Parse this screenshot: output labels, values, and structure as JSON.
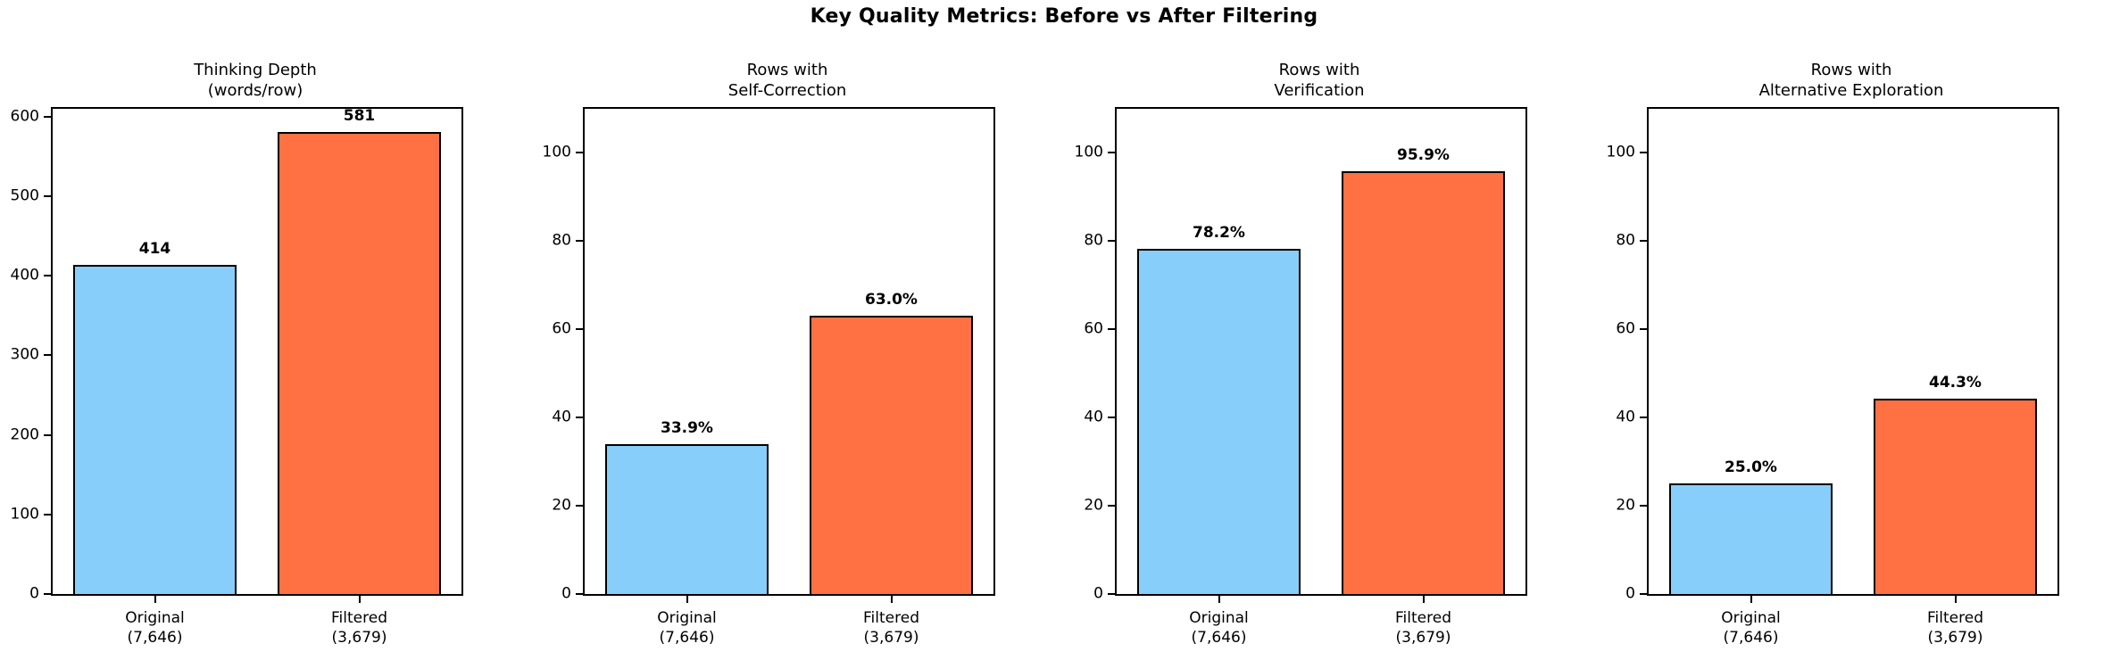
{
  "figure": {
    "title": "Key Quality Metrics: Before vs After Filtering"
  },
  "colors": {
    "original_bar": "#87CEFA",
    "filtered_bar": "#FF7043",
    "bar_edge": "#000000",
    "axis": "#000000",
    "background": "#FFFFFF"
  },
  "chart_data": [
    {
      "type": "bar",
      "title_lines": [
        "Thinking Depth",
        "(words/row)"
      ],
      "categories": [
        "Original (7,646)",
        "Filtered (3,679)"
      ],
      "category_lines": [
        [
          "Original",
          "(7,646)"
        ],
        [
          "Filtered",
          "(3,679)"
        ]
      ],
      "values": [
        414,
        581
      ],
      "bar_labels": [
        "414",
        "581"
      ],
      "yticks": [
        0,
        100,
        200,
        300,
        400,
        500,
        600
      ],
      "ylim": [
        0,
        610
      ],
      "grid": false,
      "legend": "none"
    },
    {
      "type": "bar",
      "title_lines": [
        "Rows with",
        "Self-Correction"
      ],
      "categories": [
        "Original (7,646)",
        "Filtered (3,679)"
      ],
      "category_lines": [
        [
          "Original",
          "(7,646)"
        ],
        [
          "Filtered",
          "(3,679)"
        ]
      ],
      "values": [
        33.9,
        63.0
      ],
      "bar_labels": [
        "33.9%",
        "63.0%"
      ],
      "yticks": [
        0,
        20,
        40,
        60,
        80,
        100
      ],
      "ylim": [
        0,
        110
      ],
      "grid": false,
      "legend": "none"
    },
    {
      "type": "bar",
      "title_lines": [
        "Rows with",
        "Verification"
      ],
      "categories": [
        "Original (7,646)",
        "Filtered (3,679)"
      ],
      "category_lines": [
        [
          "Original",
          "(7,646)"
        ],
        [
          "Filtered",
          "(3,679)"
        ]
      ],
      "values": [
        78.2,
        95.9
      ],
      "bar_labels": [
        "78.2%",
        "95.9%"
      ],
      "yticks": [
        0,
        20,
        40,
        60,
        80,
        100
      ],
      "ylim": [
        0,
        110
      ],
      "grid": false,
      "legend": "none"
    },
    {
      "type": "bar",
      "title_lines": [
        "Rows with",
        "Alternative Exploration"
      ],
      "categories": [
        "Original (7,646)",
        "Filtered (3,679)"
      ],
      "category_lines": [
        [
          "Original",
          "(7,646)"
        ],
        [
          "Filtered",
          "(3,679)"
        ]
      ],
      "values": [
        25.0,
        44.3
      ],
      "bar_labels": [
        "25.0%",
        "44.3%"
      ],
      "yticks": [
        0,
        20,
        40,
        60,
        80,
        100
      ],
      "ylim": [
        0,
        110
      ],
      "grid": false,
      "legend": "none"
    }
  ]
}
